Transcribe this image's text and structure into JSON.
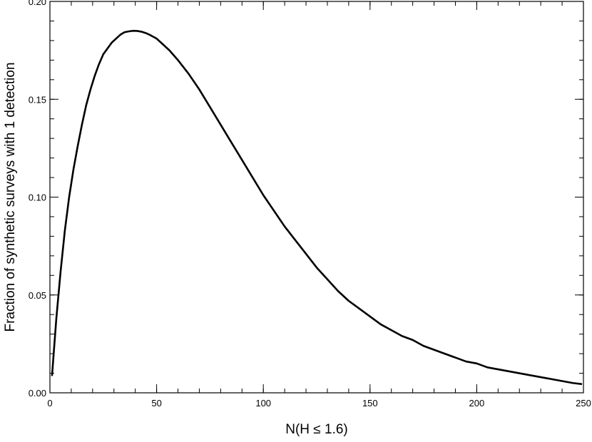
{
  "chart_data": {
    "type": "line",
    "title": "",
    "xlabel": "N(H ≤ 1.6)",
    "ylabel": "Fraction of synthetic surveys  with 1 detection",
    "xlim": [
      0,
      250
    ],
    "ylim": [
      0.0,
      0.2
    ],
    "x_ticks": [
      {
        "value": 0,
        "label": "0"
      },
      {
        "value": 50,
        "label": "50"
      },
      {
        "value": 100,
        "label": "100"
      },
      {
        "value": 150,
        "label": "150"
      },
      {
        "value": 200,
        "label": "200"
      },
      {
        "value": 250,
        "label": "250"
      }
    ],
    "y_ticks": [
      {
        "value": 0.0,
        "label": "0.00"
      },
      {
        "value": 0.05,
        "label": "0.05"
      },
      {
        "value": 0.1,
        "label": "0.10"
      },
      {
        "value": 0.15,
        "label": "0.15"
      },
      {
        "value": 0.2,
        "label": "0.20"
      }
    ],
    "x_minor_step": 10,
    "y_minor_step": 0.01,
    "grid": false,
    "legend": "none",
    "line_color": "#000000",
    "series": [
      {
        "x": [
          1,
          3,
          5,
          7,
          9,
          11,
          13,
          15,
          17,
          19,
          21,
          23,
          25,
          27,
          29,
          31,
          33,
          35,
          37,
          39,
          41,
          43,
          45,
          47,
          50,
          53,
          56,
          60,
          65,
          70,
          75,
          80,
          85,
          90,
          95,
          100,
          105,
          110,
          115,
          120,
          125,
          130,
          135,
          140,
          145,
          150,
          155,
          160,
          165,
          170,
          175,
          180,
          185,
          190,
          195,
          200,
          205,
          210,
          215,
          220,
          225,
          230,
          235,
          240,
          245,
          249
        ],
        "y": [
          0.009,
          0.038,
          0.062,
          0.083,
          0.1,
          0.114,
          0.126,
          0.137,
          0.147,
          0.155,
          0.162,
          0.168,
          0.173,
          0.176,
          0.179,
          0.181,
          0.183,
          0.1843,
          0.1847,
          0.185,
          0.1849,
          0.1845,
          0.1838,
          0.1828,
          0.181,
          0.178,
          0.175,
          0.17,
          0.163,
          0.155,
          0.146,
          0.137,
          0.128,
          0.119,
          0.11,
          0.101,
          0.093,
          0.085,
          0.078,
          0.071,
          0.064,
          0.058,
          0.052,
          0.047,
          0.043,
          0.039,
          0.035,
          0.032,
          0.029,
          0.027,
          0.024,
          0.022,
          0.02,
          0.018,
          0.016,
          0.015,
          0.013,
          0.012,
          0.011,
          0.01,
          0.009,
          0.008,
          0.007,
          0.006,
          0.005,
          0.0045
        ]
      }
    ]
  }
}
